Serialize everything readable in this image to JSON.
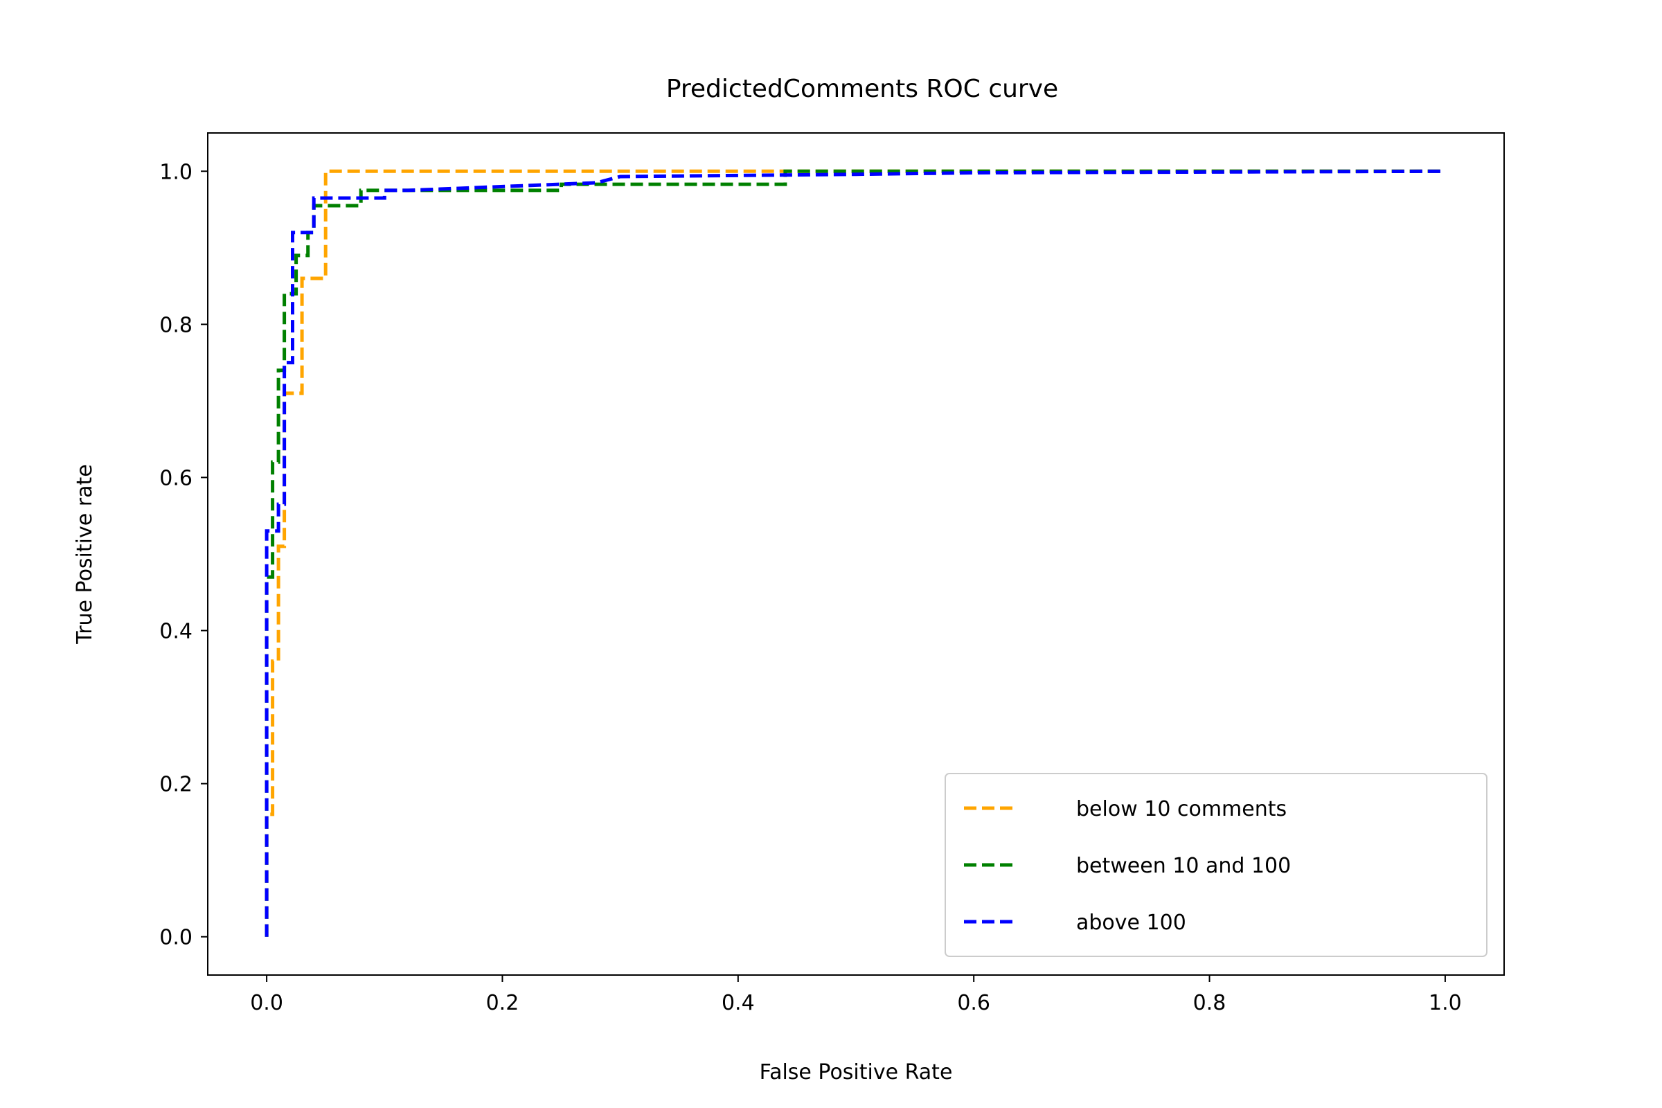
{
  "chart_data": {
    "type": "line",
    "title": "PredictedComments ROC curve",
    "xlabel": "False Positive Rate",
    "ylabel": "True Positive rate",
    "xlim": [
      -0.05,
      1.05
    ],
    "ylim": [
      -0.05,
      1.05
    ],
    "x_ticks": [
      "0.0",
      "0.2",
      "0.4",
      "0.6",
      "0.8",
      "1.0"
    ],
    "y_ticks": [
      "0.0",
      "0.2",
      "0.4",
      "0.6",
      "0.8",
      "1.0"
    ],
    "grid": false,
    "legend_position": "lower-right",
    "series": [
      {
        "name": "below 10 comments",
        "color": "#FFA500",
        "line_style": "dashed",
        "points": [
          [
            0.0,
            0.0
          ],
          [
            0.0,
            0.16
          ],
          [
            0.005,
            0.16
          ],
          [
            0.005,
            0.36
          ],
          [
            0.01,
            0.36
          ],
          [
            0.01,
            0.51
          ],
          [
            0.015,
            0.51
          ],
          [
            0.015,
            0.71
          ],
          [
            0.03,
            0.71
          ],
          [
            0.03,
            0.86
          ],
          [
            0.05,
            0.86
          ],
          [
            0.05,
            1.0
          ],
          [
            1.0,
            1.0
          ]
        ]
      },
      {
        "name": "between 10 and 100",
        "color": "#008000",
        "line_style": "dashed",
        "points": [
          [
            0.0,
            0.0
          ],
          [
            0.0,
            0.47
          ],
          [
            0.005,
            0.47
          ],
          [
            0.005,
            0.62
          ],
          [
            0.01,
            0.62
          ],
          [
            0.01,
            0.74
          ],
          [
            0.015,
            0.74
          ],
          [
            0.015,
            0.84
          ],
          [
            0.025,
            0.84
          ],
          [
            0.025,
            0.89
          ],
          [
            0.035,
            0.89
          ],
          [
            0.035,
            0.92
          ],
          [
            0.04,
            0.92
          ],
          [
            0.04,
            0.955
          ],
          [
            0.08,
            0.955
          ],
          [
            0.08,
            0.975
          ],
          [
            0.25,
            0.975
          ],
          [
            0.25,
            0.983
          ],
          [
            0.44,
            0.983
          ],
          [
            0.44,
            1.0
          ],
          [
            1.0,
            1.0
          ]
        ]
      },
      {
        "name": "above 100",
        "color": "#0000FF",
        "line_style": "dashed",
        "points": [
          [
            0.0,
            0.0
          ],
          [
            0.0,
            0.53
          ],
          [
            0.01,
            0.53
          ],
          [
            0.01,
            0.565
          ],
          [
            0.015,
            0.565
          ],
          [
            0.015,
            0.75
          ],
          [
            0.022,
            0.75
          ],
          [
            0.022,
            0.92
          ],
          [
            0.04,
            0.92
          ],
          [
            0.04,
            0.965
          ],
          [
            0.1,
            0.965
          ],
          [
            0.1,
            0.975
          ],
          [
            0.12,
            0.975
          ],
          [
            0.28,
            0.985
          ],
          [
            0.3,
            0.993
          ],
          [
            0.5,
            0.996
          ],
          [
            0.6,
            0.998
          ],
          [
            1.0,
            1.0
          ]
        ]
      }
    ]
  }
}
